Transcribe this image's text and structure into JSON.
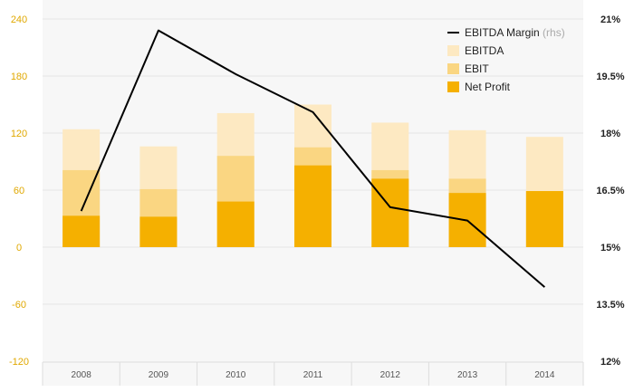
{
  "chart_data": {
    "type": "bar",
    "stacked": true,
    "categories": [
      "2008",
      "2009",
      "2010",
      "2011",
      "2012",
      "2013",
      "2014"
    ],
    "series": [
      {
        "name": "Net Profit",
        "values": [
          33,
          32,
          48,
          86,
          72,
          57,
          59
        ],
        "color": "#f5b000"
      },
      {
        "name": "EBIT",
        "values": [
          81,
          61,
          96,
          105,
          81,
          72,
          59
        ],
        "color": "#fad682"
      },
      {
        "name": "EBITDA",
        "values": [
          124,
          106,
          141,
          150,
          131,
          123,
          116
        ],
        "color": "#fde9c2"
      }
    ],
    "line_series": {
      "name": "EBITDA Margin",
      "axis_note": "(rhs)",
      "axis": "right",
      "values": [
        15.95,
        20.7,
        19.55,
        18.55,
        16.05,
        15.7,
        13.95
      ],
      "color": "#000000"
    },
    "y_left": {
      "ylim": [
        -120,
        240
      ],
      "ticks": [
        "-120",
        "-60",
        "0",
        "60",
        "120",
        "180",
        "240"
      ],
      "color": "#e0a800"
    },
    "y_right": {
      "ylim": [
        12,
        21
      ],
      "ticks": [
        "12%",
        "13.5%",
        "15%",
        "16.5%",
        "18%",
        "19.5%",
        "21%"
      ]
    },
    "legend_position": "top-right",
    "grid": true
  }
}
